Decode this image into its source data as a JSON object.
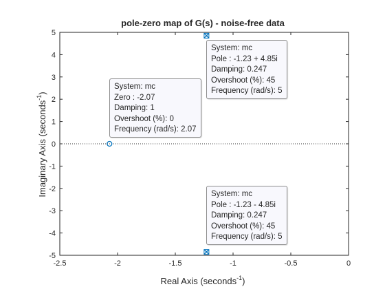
{
  "chart_data": {
    "type": "scatter",
    "title": "pole-zero map of G(s) - noise-free data",
    "xlabel": "Real Axis (seconds",
    "xlabel_sup": "-1",
    "xlabel_end": ")",
    "ylabel": "Imaginary Axis (seconds",
    "ylabel_sup": "-1",
    "ylabel_end": ")",
    "xlim": [
      -2.5,
      0
    ],
    "ylim": [
      -5,
      5
    ],
    "xticks": [
      "-2.5",
      "-2",
      "-1.5",
      "-1",
      "-0.5",
      "0"
    ],
    "yticks": [
      "-5",
      "-4",
      "-3",
      "-2",
      "-1",
      "0",
      "1",
      "2",
      "3",
      "4",
      "5"
    ],
    "grid": false,
    "colors": {
      "marker": "#0072bd",
      "axes": "#262626",
      "zero_line": "#333333"
    },
    "poles": [
      {
        "re": -1.23,
        "im": 4.85
      },
      {
        "re": -1.23,
        "im": -4.85
      }
    ],
    "zeros": [
      {
        "re": -2.07,
        "im": 0
      }
    ],
    "datatips": [
      {
        "lines": [
          "System: mc",
          "Zero : -2.07",
          "Damping: 1",
          "Overshoot (%): 0",
          "Frequency (rad/s): 2.07"
        ]
      },
      {
        "lines": [
          "System: mc",
          "Pole : -1.23 + 4.85i",
          "Damping: 0.247",
          "Overshoot (%): 45",
          "Frequency (rad/s): 5"
        ]
      },
      {
        "lines": [
          "System: mc",
          "Pole : -1.23 - 4.85i",
          "Damping: 0.247",
          "Overshoot (%): 45",
          "Frequency (rad/s): 5"
        ]
      }
    ]
  }
}
